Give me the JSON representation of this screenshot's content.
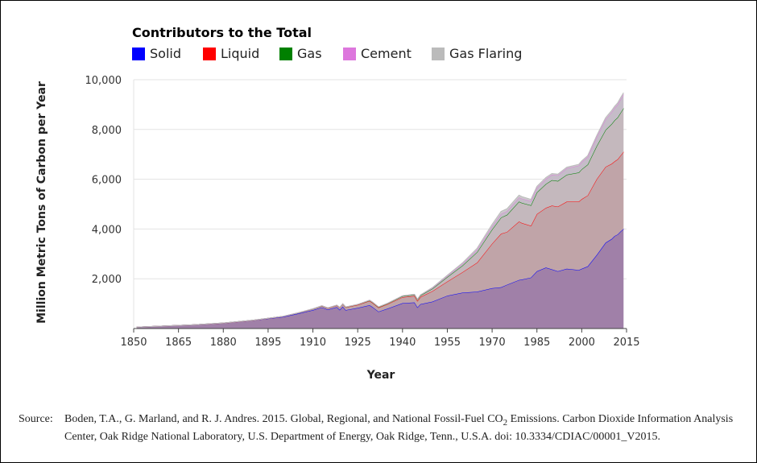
{
  "legend": {
    "title": "Contributors to the Total",
    "items": [
      {
        "label": "Solid",
        "color": "#0000ff"
      },
      {
        "label": "Liquid",
        "color": "#ff0000"
      },
      {
        "label": "Gas",
        "color": "#008000"
      },
      {
        "label": "Cement",
        "color": "#dd77dd"
      },
      {
        "label": "Gas Flaring",
        "color": "#bbbbbb"
      }
    ]
  },
  "source": {
    "label": "Source:",
    "text_before": "Boden, T.A., G. Marland, and R. J. Andres. 2015. Global, Regional, and National Fossil-Fuel CO",
    "subscript": "2",
    "text_after": " Emissions. Carbon Dioxide Information Analysis Center, Oak Ridge National Laboratory, U.S. Department of Energy, Oak Ridge, Tenn., U.S.A. doi: 10.3334/CDIAC/00001_V2015."
  },
  "chart_data": {
    "type": "area",
    "stacked": true,
    "xlabel": "Year",
    "ylabel": "Million Metric Tons of Carbon per Year",
    "xlim": [
      1850,
      2015
    ],
    "ylim": [
      0,
      10000
    ],
    "x_ticks": [
      1850,
      1865,
      1880,
      1895,
      1910,
      1925,
      1940,
      1955,
      1970,
      1985,
      2000,
      2015
    ],
    "y_ticks": [
      2000,
      4000,
      6000,
      8000,
      10000
    ],
    "y_tick_labels": [
      "2,000",
      "4,000",
      "6,000",
      "8,000",
      "10,000"
    ],
    "x": [
      1851,
      1860,
      1870,
      1880,
      1890,
      1900,
      1905,
      1910,
      1913,
      1915,
      1918,
      1919,
      1920,
      1921,
      1925,
      1929,
      1930,
      1932,
      1935,
      1940,
      1944,
      1945,
      1946,
      1950,
      1955,
      1960,
      1965,
      1970,
      1973,
      1975,
      1979,
      1980,
      1983,
      1985,
      1988,
      1990,
      1992,
      1995,
      1999,
      2000,
      2002,
      2005,
      2008,
      2010,
      2011,
      2012,
      2013,
      2014
    ],
    "series": [
      {
        "name": "Solid",
        "color": "#0000ff",
        "values": [
          54,
          100,
          150,
          220,
          330,
          470,
          600,
          740,
          850,
          760,
          860,
          750,
          880,
          740,
          830,
          940,
          860,
          680,
          800,
          1020,
          1050,
          850,
          980,
          1080,
          1320,
          1440,
          1480,
          1620,
          1660,
          1760,
          1950,
          1970,
          2050,
          2300,
          2450,
          2380,
          2300,
          2400,
          2350,
          2400,
          2500,
          2950,
          3450,
          3600,
          3720,
          3780,
          3900,
          4000
        ]
      },
      {
        "name": "Liquid",
        "color": "#ff0000",
        "values": [
          0,
          0,
          0,
          1,
          3,
          16,
          25,
          45,
          55,
          60,
          70,
          90,
          100,
          110,
          120,
          170,
          170,
          160,
          180,
          240,
          260,
          260,
          290,
          420,
          570,
          820,
          1170,
          1790,
          2150,
          2120,
          2350,
          2270,
          2080,
          2300,
          2400,
          2560,
          2600,
          2700,
          2750,
          2800,
          2850,
          3050,
          3050,
          3020,
          3000,
          3020,
          3050,
          3100
        ]
      },
      {
        "name": "Gas",
        "color": "#008000",
        "values": [
          0,
          0,
          0,
          1,
          3,
          3,
          4,
          5,
          6,
          6,
          7,
          8,
          10,
          12,
          15,
          20,
          20,
          21,
          25,
          40,
          50,
          55,
          60,
          100,
          180,
          260,
          420,
          570,
          650,
          690,
          800,
          810,
          820,
          870,
          960,
          1020,
          1030,
          1080,
          1170,
          1200,
          1240,
          1330,
          1480,
          1600,
          1650,
          1680,
          1720,
          1750
        ]
      },
      {
        "name": "Cement",
        "color": "#dd77dd",
        "values": [
          0,
          0,
          0,
          0,
          0,
          1,
          2,
          3,
          4,
          4,
          4,
          4,
          5,
          5,
          6,
          10,
          10,
          9,
          12,
          17,
          16,
          17,
          20,
          28,
          45,
          70,
          100,
          130,
          150,
          150,
          170,
          170,
          170,
          185,
          200,
          220,
          230,
          260,
          280,
          290,
          310,
          360,
          430,
          480,
          500,
          520,
          540,
          560
        ]
      },
      {
        "name": "Gas Flaring",
        "color": "#bbbbbb",
        "values": [
          0,
          0,
          0,
          0,
          0,
          0,
          0,
          0,
          0,
          0,
          0,
          0,
          0,
          0,
          0,
          0,
          0,
          0,
          0,
          0,
          0,
          0,
          0,
          20,
          30,
          40,
          60,
          80,
          100,
          95,
          90,
          80,
          70,
          60,
          60,
          50,
          45,
          45,
          50,
          50,
          50,
          60,
          65,
          65,
          65,
          65,
          68,
          70
        ]
      }
    ]
  }
}
